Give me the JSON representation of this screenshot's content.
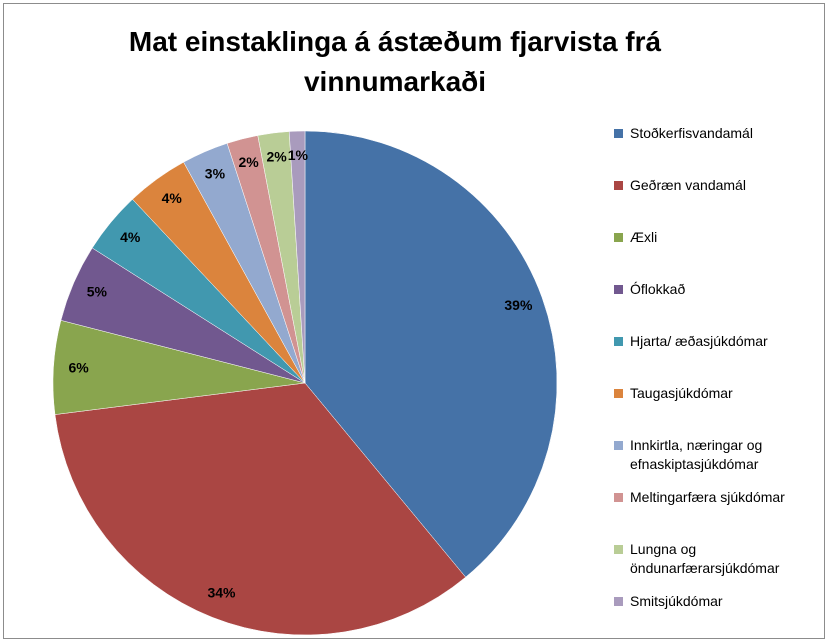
{
  "chart_data": {
    "type": "pie",
    "title": "Mat einstaklinga á ástæðum fjarvista frá vinnumarkaði",
    "categories": [
      "Stoðkerfisvandamál",
      "Geðræn vandamál",
      "Æxli",
      "Óflokkað",
      "Hjarta/ æðasjúkdómar",
      "Taugasjúkdómar",
      "Innkirtla, næringar og efnaskiptasjúkdómar",
      "Meltingarfæra sjúkdómar",
      "Lungna og öndunarfærarsjúkdómar",
      "Smitsjúkdómar"
    ],
    "values": [
      39,
      34,
      6,
      5,
      4,
      4,
      3,
      2,
      2,
      1
    ],
    "value_labels": [
      "39%",
      "34%",
      "6%",
      "5%",
      "4%",
      "4%",
      "3%",
      "2%",
      "2%",
      "1%"
    ],
    "colors": [
      "#4572a7",
      "#aa4643",
      "#89a54e",
      "#71588f",
      "#4198af",
      "#db843d",
      "#93a9cf",
      "#d19392",
      "#b9cd96",
      "#a99bbd"
    ],
    "legend": "right"
  }
}
